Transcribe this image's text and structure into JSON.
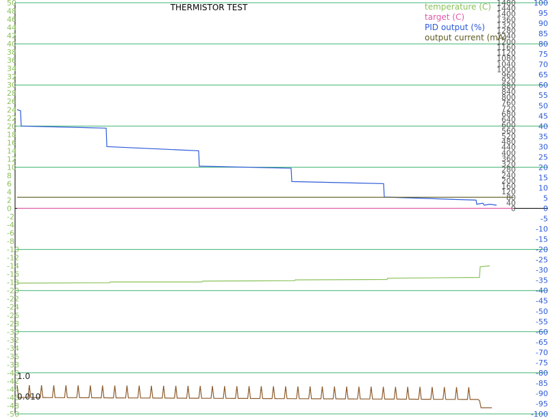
{
  "chart_data": {
    "type": "line",
    "title": "THERMISTOR TEST",
    "axes": {
      "left": {
        "range": [
          -50,
          50
        ],
        "ticks": [
          50,
          48,
          46,
          44,
          42,
          40,
          38,
          36,
          34,
          32,
          30,
          28,
          26,
          24,
          22,
          20,
          18,
          16,
          14,
          12,
          10,
          8,
          6,
          4,
          2,
          0,
          -2,
          -4,
          -6,
          -8,
          -10,
          -12,
          -14,
          -16,
          -18,
          -20,
          -22,
          -24,
          -26,
          -28,
          -30,
          -32,
          -34,
          -36,
          -38,
          -40,
          -42,
          -44,
          -46,
          -48,
          -50
        ],
        "color": "#8ac15a"
      },
      "mid": {
        "range": [
          -1480,
          1480
        ],
        "ticks": [
          1480,
          1440,
          1400,
          1360,
          1320,
          1280,
          1240,
          1200,
          1160,
          1120,
          1080,
          1040,
          1000,
          960,
          920,
          880,
          840,
          800,
          760,
          720,
          680,
          640,
          600,
          560,
          520,
          480,
          440,
          400,
          360,
          320,
          280,
          240,
          200,
          160,
          120,
          80,
          40,
          0
        ],
        "color": "#555555"
      },
      "right": {
        "range": [
          -100,
          100
        ],
        "ticks": [
          100,
          95,
          90,
          85,
          80,
          75,
          70,
          65,
          60,
          55,
          50,
          45,
          40,
          35,
          30,
          25,
          20,
          15,
          10,
          5,
          0,
          -5,
          -10,
          -15,
          -20,
          -25,
          -30,
          -35,
          -40,
          -45,
          -50,
          -55,
          -60,
          -65,
          -70,
          -75,
          -80,
          -85,
          -90,
          -95,
          -100
        ],
        "color": "#2b59d9"
      }
    },
    "legend": {
      "placement": "top-right",
      "entries": [
        {
          "label": "temperature (C)",
          "color": "#8ac15a"
        },
        {
          "label": "target (C)",
          "color": "#e05aa8"
        },
        {
          "label": "PID output (%)",
          "color": "#2b59d9"
        },
        {
          "label": "output current (mA)",
          "color": "#5c5a1e"
        }
      ]
    },
    "grid": {
      "horizontal_every": 10,
      "color": "#3cb371"
    },
    "series": [
      {
        "name": "temperature (C)",
        "axis": "left",
        "color": "#8ac15a",
        "x": [
          0,
          135,
          136,
          270,
          271,
          405,
          406,
          540,
          541,
          675,
          676,
          690
        ],
        "values": [
          -18.2,
          -18.1,
          -17.9,
          -17.9,
          -17.7,
          -17.6,
          -17.4,
          -17.3,
          -17.0,
          -16.8,
          -14.2,
          -14.0
        ]
      },
      {
        "name": "target (C)",
        "axis": "left",
        "color": "#e05aa8",
        "x": [
          0,
          725
        ],
        "values": [
          0,
          0
        ]
      },
      {
        "name": "PID output (%)",
        "axis": "right",
        "color": "#2b59d9",
        "x": [
          0,
          5,
          6,
          130,
          131,
          265,
          266,
          400,
          401,
          535,
          536,
          670,
          671,
          680,
          682,
          690,
          700
        ],
        "values": [
          48,
          47.5,
          40,
          39,
          30,
          28,
          20.5,
          19.5,
          13,
          12,
          5.5,
          4,
          2,
          2.5,
          1.5,
          2,
          1.5
        ]
      },
      {
        "name": "output current (mA)",
        "axis": "mid",
        "color": "#5c5a1e",
        "x": [
          0,
          725
        ],
        "values": [
          80,
          80
        ]
      },
      {
        "name": "",
        "axis": "left",
        "color": "#8b5a2b",
        "x": [
          0,
          675,
          676,
          693
        ],
        "values": [
          -46,
          -46.5,
          -48.5,
          -48.5
        ],
        "spikes": {
          "every": 9,
          "height": 3
        }
      }
    ]
  },
  "annotations": {
    "bottom_values": [
      "1.0",
      "0.010"
    ]
  }
}
